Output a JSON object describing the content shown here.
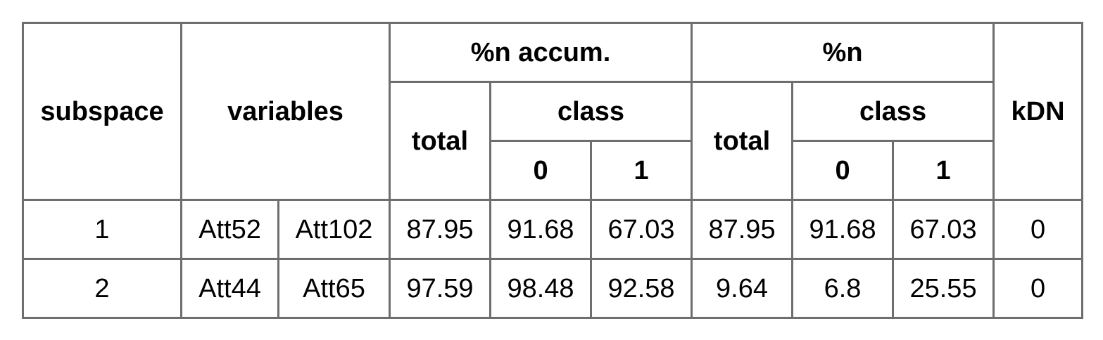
{
  "table": {
    "headers": {
      "subspace": "subspace",
      "variables": "variables",
      "pct_accum": "%n accum.",
      "pct": "%n",
      "kdn": "kDN",
      "total": "total",
      "class": "class",
      "class_0": "0",
      "class_1": "1"
    },
    "rows": [
      {
        "subspace": "1",
        "var1": "Att52",
        "var2": "Att102",
        "accum_total": "87.95",
        "accum_class0": "91.68",
        "accum_class1": "67.03",
        "pct_total": "87.95",
        "pct_class0": "91.68",
        "pct_class1": "67.03",
        "kdn": "0"
      },
      {
        "subspace": "2",
        "var1": "Att44",
        "var2": "Att65",
        "accum_total": "97.59",
        "accum_class0": "98.48",
        "accum_class1": "92.58",
        "pct_total": "9.64",
        "pct_class0": "6.8",
        "pct_class1": "25.55",
        "kdn": "0"
      }
    ]
  }
}
